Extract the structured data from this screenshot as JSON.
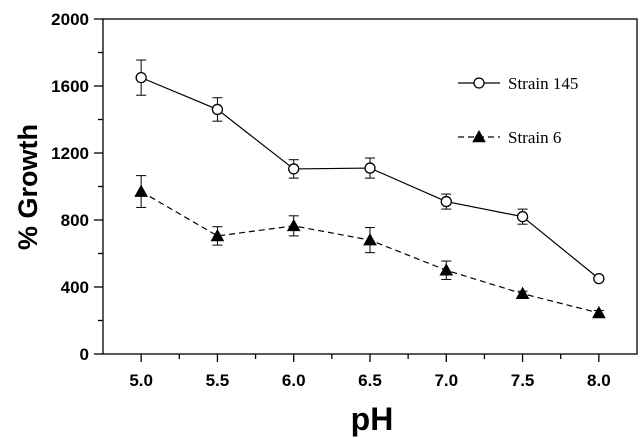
{
  "chart_data": {
    "type": "line",
    "title": "",
    "xlabel": "pH",
    "ylabel": "% Growth",
    "x": [
      5.0,
      5.5,
      6.0,
      6.5,
      7.0,
      7.5,
      8.0
    ],
    "x_tick_labels": [
      "5.0",
      "5.5",
      "6.0",
      "6.5",
      "7.0",
      "7.5",
      "8.0"
    ],
    "xlim": [
      4.75,
      8.25
    ],
    "ylim": [
      0,
      2000
    ],
    "y_ticks": [
      0,
      400,
      800,
      1200,
      1600,
      2000
    ],
    "y_tick_labels": [
      "0",
      "400",
      "800",
      "1200",
      "1600",
      "2000"
    ],
    "grid": false,
    "legend_position": "top-right",
    "series": [
      {
        "name": "Strain 145",
        "marker": "open-circle",
        "line_style": "solid",
        "values": [
          1650,
          1460,
          1105,
          1110,
          910,
          820,
          450
        ],
        "errors": [
          105,
          70,
          55,
          60,
          45,
          45,
          15
        ]
      },
      {
        "name": "Strain 6",
        "marker": "filled-triangle",
        "line_style": "dashed",
        "values": [
          970,
          705,
          765,
          680,
          500,
          360,
          245
        ],
        "errors": [
          95,
          55,
          60,
          75,
          55,
          15,
          15
        ]
      }
    ]
  }
}
